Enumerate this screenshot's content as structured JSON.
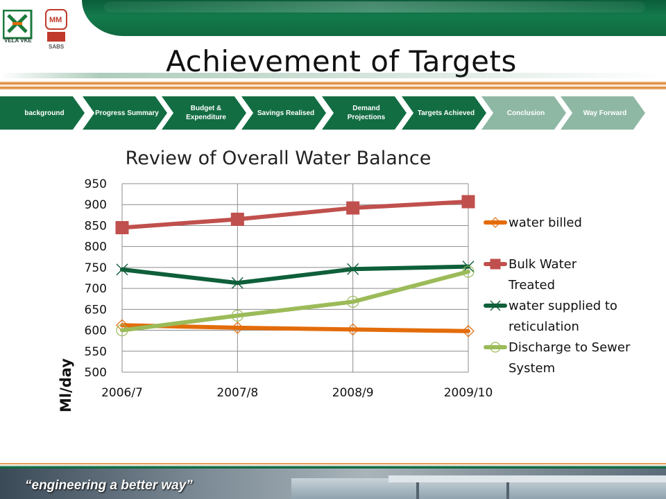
{
  "header": {
    "title": "Achievement of Targets",
    "logo_left_text": "VELA VKE",
    "logo_right_text": "SABS"
  },
  "nav": {
    "items": [
      {
        "label": "background",
        "state": "active"
      },
      {
        "label": "Progress Summary",
        "state": "active"
      },
      {
        "label": "Budget & Expenditure",
        "state": "active"
      },
      {
        "label": "Savings Realised",
        "state": "active"
      },
      {
        "label": "Demand Projections",
        "state": "active"
      },
      {
        "label": "Targets Achieved",
        "state": "active"
      },
      {
        "label": "Conclusion",
        "state": "inactive"
      },
      {
        "label": "Way Forward",
        "state": "inactive"
      }
    ]
  },
  "chart_data": {
    "type": "line",
    "title": "Review of Overall Water Balance",
    "xlabel": "",
    "ylabel": "Ml/day",
    "categories": [
      "2006/7",
      "2007/8",
      "2008/9",
      "2009/10"
    ],
    "ylim": [
      500,
      950
    ],
    "yticks": [
      950,
      900,
      850,
      800,
      750,
      700,
      650,
      600,
      550,
      500
    ],
    "grid": "both",
    "legend_position": "right",
    "series": [
      {
        "name": "water billed",
        "values": [
          612,
          606,
          602,
          598
        ],
        "color": "#e36c0a",
        "marker": "diamond"
      },
      {
        "name": "Bulk Water Treated",
        "values": [
          845,
          865,
          892,
          907
        ],
        "color": "#c0504d",
        "marker": "square"
      },
      {
        "name": "water supplied to reticulation",
        "values": [
          745,
          713,
          746,
          752
        ],
        "color": "#0e5f3a",
        "marker": "x"
      },
      {
        "name": "Discharge to Sewer System",
        "values": [
          600,
          635,
          668,
          740
        ],
        "color": "#9bbb59",
        "marker": "circle"
      }
    ]
  },
  "legend_lines": [
    [
      "water billed"
    ],
    [
      "Bulk Water",
      "Treated"
    ],
    [
      "water supplied to",
      "reticulation"
    ],
    [
      "Discharge to Sewer",
      "System"
    ]
  ],
  "footer": {
    "tagline": "“engineering a better way”"
  }
}
